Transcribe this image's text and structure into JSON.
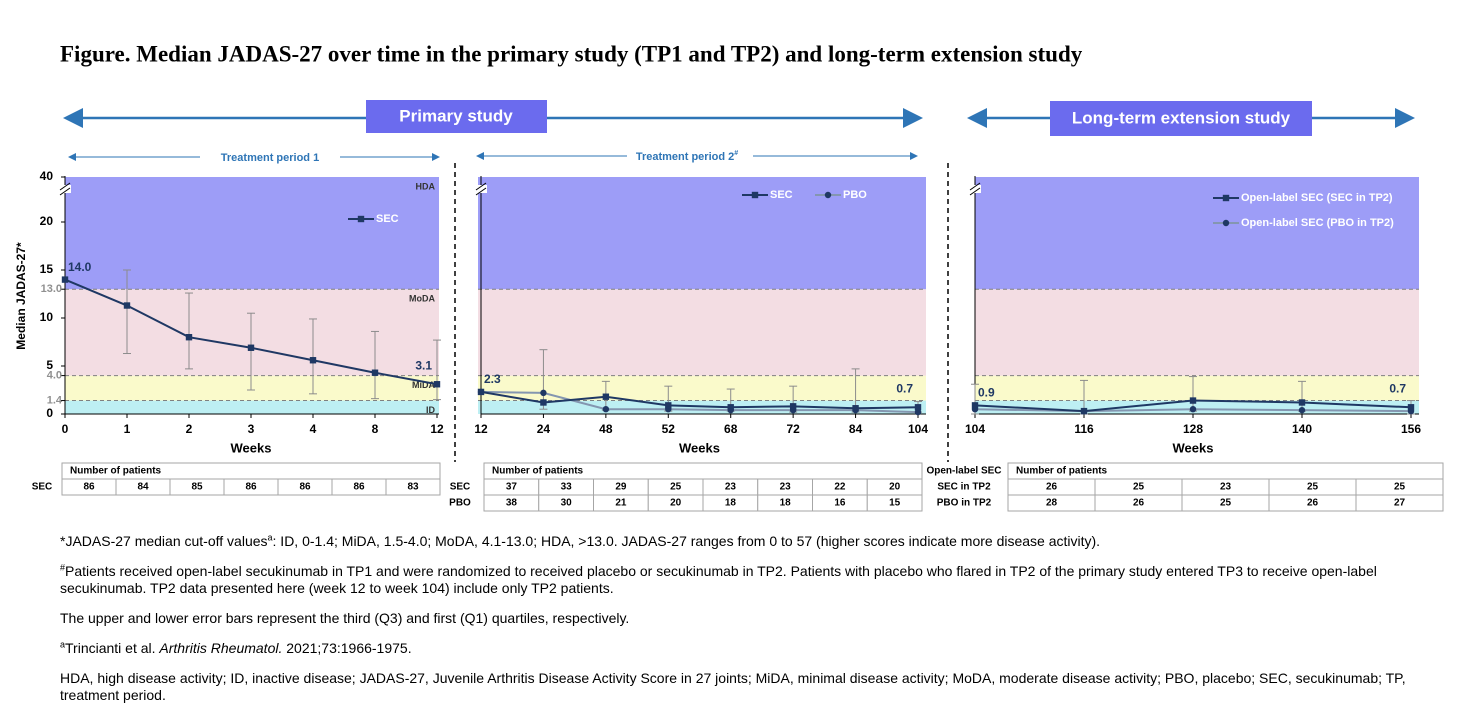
{
  "title": "Figure. Median JADAS-27 over time in the primary study (TP1 and TP2) and long-term extension study",
  "study_headers": [
    "Primary study",
    "Long-term extension study"
  ],
  "period_headers": [
    {
      "text": "Treatment period 1"
    },
    {
      "text": "Treatment period 2",
      "sup": "#"
    }
  ],
  "chart_data": [
    {
      "type": "line",
      "ylabel": "Median JADAS-27*",
      "xlabel": "Weeks",
      "categories": [
        "0",
        "1",
        "2",
        "3",
        "4",
        "8",
        "12"
      ],
      "ylim": [
        0,
        40
      ],
      "y_break": 20,
      "yticks": [
        0,
        1.4,
        {
          "value": 4,
          "label": "4.0"
        },
        5,
        10,
        {
          "value": 13,
          "label": "13.0"
        },
        15,
        20,
        40
      ],
      "zones": [
        {
          "label": "ID",
          "from": 0,
          "to": 1.4,
          "color": "#bdeff3"
        },
        {
          "label": "MiDA",
          "from": 1.4,
          "to": 4,
          "color": "#fafacb"
        },
        {
          "label": "MoDA",
          "from": 4,
          "to": 13,
          "color": "#f3dde3"
        },
        {
          "label": "HDA",
          "from": 13,
          "to": 40,
          "color": "#9d9df7"
        }
      ],
      "legend": "upper right",
      "series": [
        {
          "name": "SEC",
          "color": "#1f3864",
          "marker": "square",
          "values": [
            14.0,
            11.3,
            8.0,
            6.9,
            5.6,
            4.3,
            3.1
          ],
          "value_labels": [
            "14.0",
            null,
            null,
            null,
            null,
            null,
            "3.1"
          ],
          "q3": [
            null,
            15.0,
            12.6,
            10.5,
            9.9,
            8.6,
            7.7
          ],
          "q1": [
            null,
            6.3,
            4.7,
            2.5,
            2.1,
            1.6,
            1.5
          ]
        }
      ]
    },
    {
      "type": "line",
      "xlabel": "Weeks",
      "categories": [
        "12",
        "24",
        "48",
        "52",
        "68",
        "72",
        "84",
        "104"
      ],
      "ylim": [
        0,
        40
      ],
      "y_break": 20,
      "zones": [
        {
          "from": 0,
          "to": 1.4,
          "color": "#bdeff3"
        },
        {
          "from": 1.4,
          "to": 4,
          "color": "#fafacb"
        },
        {
          "from": 4,
          "to": 13,
          "color": "#f3dde3"
        },
        {
          "from": 13,
          "to": 40,
          "color": "#9d9df7"
        }
      ],
      "legend": "upper right",
      "series": [
        {
          "name": "SEC",
          "color": "#1f3864",
          "marker": "square",
          "values": [
            2.3,
            1.2,
            1.8,
            0.9,
            0.7,
            0.8,
            0.6,
            0.7
          ],
          "value_labels": [
            "2.3",
            null,
            null,
            null,
            null,
            null,
            null,
            "0.7"
          ],
          "q3": [
            null,
            6.7,
            3.4,
            2.9,
            2.6,
            2.9,
            4.7,
            1.3
          ],
          "q1": [
            null,
            0.5,
            0.4,
            0.3,
            0.3,
            0.2,
            0.2,
            0.2
          ]
        },
        {
          "name": "PBO",
          "color": "#8496b0",
          "marker": "circle",
          "values": [
            2.3,
            2.2,
            0.5,
            0.5,
            0.4,
            0.4,
            0.4,
            0.2
          ]
        }
      ]
    },
    {
      "type": "line",
      "xlabel": "Weeks",
      "categories": [
        "104",
        "116",
        "128",
        "140",
        "156"
      ],
      "ylim": [
        0,
        40
      ],
      "y_break": 20,
      "zones": [
        {
          "from": 0,
          "to": 1.4,
          "color": "#bdeff3"
        },
        {
          "from": 1.4,
          "to": 4,
          "color": "#fafacb"
        },
        {
          "from": 4,
          "to": 13,
          "color": "#f3dde3"
        },
        {
          "from": 13,
          "to": 40,
          "color": "#9d9df7"
        }
      ],
      "legend": "upper right",
      "series": [
        {
          "name": "Open-label SEC (SEC in TP2)",
          "color": "#1f3864",
          "marker": "square",
          "values": [
            0.9,
            0.3,
            1.4,
            1.2,
            0.7
          ],
          "value_labels": [
            "0.9",
            null,
            null,
            null,
            "0.7"
          ],
          "q3": [
            3.1,
            3.5,
            3.9,
            3.4,
            1.4
          ],
          "q1": [
            0,
            0,
            0.3,
            0.3,
            0
          ]
        },
        {
          "name": "Open-label SEC (PBO in TP2)",
          "color": "#8496b0",
          "marker": "circle",
          "values": [
            0.5,
            0.3,
            0.5,
            0.4,
            0.3
          ]
        }
      ]
    }
  ],
  "tables": [
    {
      "header": "Number of patients",
      "rows": [
        {
          "label": "SEC",
          "values": [
            86,
            84,
            85,
            86,
            86,
            86,
            83
          ]
        }
      ]
    },
    {
      "header": "Number of patients",
      "rows": [
        {
          "label": "SEC",
          "values": [
            37,
            33,
            29,
            25,
            23,
            23,
            22,
            20
          ]
        },
        {
          "label": "PBO",
          "values": [
            38,
            30,
            21,
            20,
            18,
            18,
            16,
            15
          ]
        }
      ]
    },
    {
      "corner": "Open-label SEC",
      "header": "Number of patients",
      "rows": [
        {
          "label": "SEC in TP2",
          "values": [
            26,
            25,
            23,
            25,
            25
          ]
        },
        {
          "label": "PBO in TP2",
          "values": [
            28,
            26,
            25,
            26,
            27
          ]
        }
      ]
    }
  ],
  "footnotes": [
    [
      {
        "text": "*JADAS-27 median cut-off values"
      },
      {
        "text": "a",
        "style": "sup"
      },
      {
        "text": ": ID, 0-1.4; MiDA, 1.5-4.0; MoDA, 4.1-13.0; HDA, >13.0. JADAS-27 ranges from 0 to 57 (higher scores indicate more disease activity)."
      }
    ],
    [
      {
        "text": "#",
        "style": "sup"
      },
      {
        "text": "Patients received open-label secukinumab in TP1 and were randomized to received placebo or secukinumab in TP2. Patients with placebo who flared in TP2 of the primary study entered TP3 to receive open-label secukinumab. TP2 data presented here (week 12 to week 104) include only TP2 patients."
      }
    ],
    [
      {
        "text": "The upper and lower error bars represent the third (Q3) and first (Q1) quartiles, respectively."
      }
    ],
    [
      {
        "text": "a",
        "style": "sup"
      },
      {
        "text": "Trincianti et al. "
      },
      {
        "text": "Arthritis Rheumatol.",
        "style": "italic"
      },
      {
        "text": " 2021;73:1966-1975."
      }
    ],
    [
      {
        "text": "HDA, high disease activity; ID, inactive disease; JADAS-27, Juvenile Arthritis Disease Activity Score in 27 joints; MiDA, minimal disease activity; MoDA, moderate disease activity; PBO, placebo; SEC, secukinumab; TP, treatment period."
      }
    ]
  ]
}
